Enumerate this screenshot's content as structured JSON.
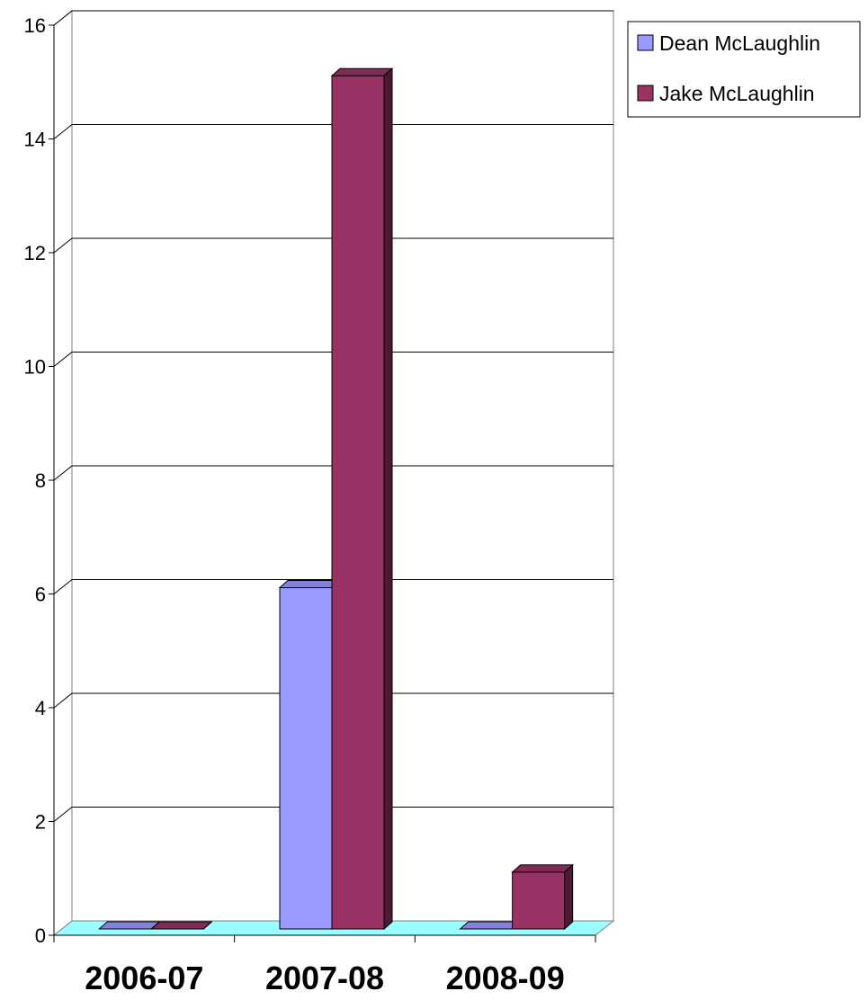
{
  "chart_data": {
    "type": "bar",
    "categories": [
      "2006-07",
      "2007-08",
      "2008-09"
    ],
    "series": [
      {
        "name": "Dean McLaughlin",
        "values": [
          0,
          6,
          0
        ],
        "color": "#9999ff"
      },
      {
        "name": "Jake McLaughlin",
        "values": [
          0,
          15,
          1
        ],
        "color": "#993366"
      }
    ],
    "title": "",
    "xlabel": "",
    "ylabel": "",
    "ylim": [
      0,
      16
    ],
    "yticks": [
      0,
      2,
      4,
      6,
      8,
      10,
      12,
      14,
      16
    ],
    "grid": true,
    "legend": "top-right",
    "floor_color": "#99ffff"
  }
}
